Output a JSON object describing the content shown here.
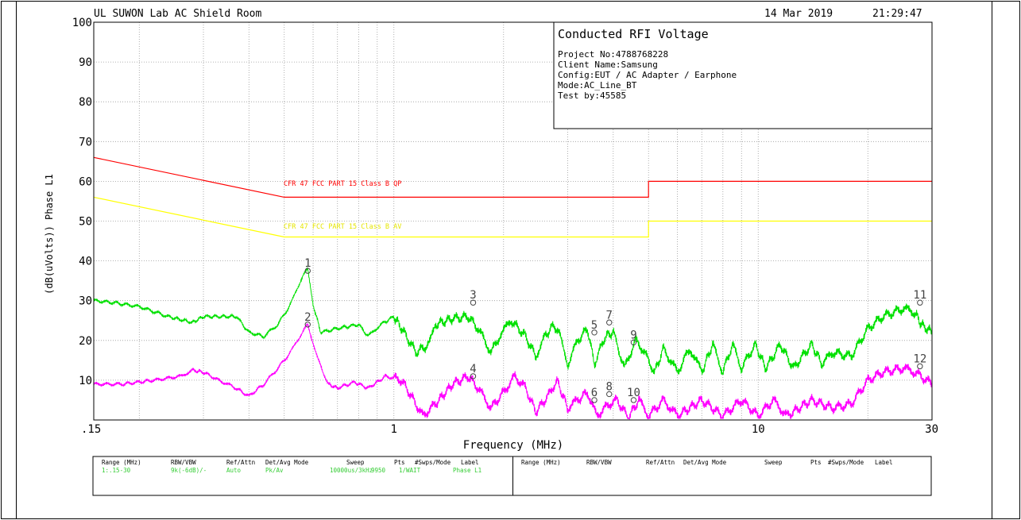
{
  "header": {
    "site": "UL SUWON Lab AC Shield Room",
    "date": "14 Mar 2019",
    "time": "21:29:47"
  },
  "info_box": {
    "title": "Conducted RFI Voltage",
    "lines": [
      "Project No:4788768228",
      "Client Name:Samsung",
      "Config:EUT / AC Adapter / Earphone",
      "Mode:AC_Line_BT",
      "Test by:45585"
    ]
  },
  "chart_data": {
    "type": "line",
    "ylabel": "(dB(uVolts)) Phase L1",
    "xlabel": "Frequency (MHz)",
    "x_scale": "log",
    "xlim": [
      0.15,
      30
    ],
    "ylim": [
      0,
      100
    ],
    "x_tick_labels": [
      ".15",
      "1",
      "10",
      "30"
    ],
    "y_tick_labels": [
      "100",
      "90",
      "80",
      "70",
      "60",
      "50",
      "40",
      "30",
      "20",
      "10"
    ],
    "grid": true,
    "colors": {
      "qp": "#ff0000",
      "av": "#ffff00",
      "peak": "#00e000",
      "average": "#ff00ff"
    },
    "limit_lines": [
      {
        "name": "CFR 47 FCC PART 15 Class B QP",
        "points": [
          [
            0.15,
            66
          ],
          [
            0.5,
            56
          ],
          [
            5,
            56
          ],
          [
            5,
            60
          ],
          [
            30,
            60
          ]
        ]
      },
      {
        "name": "CFR 47 FCC PART 15 Class B AV",
        "points": [
          [
            0.15,
            56
          ],
          [
            0.5,
            46
          ],
          [
            5,
            46
          ],
          [
            5,
            50
          ],
          [
            30,
            50
          ]
        ]
      }
    ],
    "series": [
      {
        "points": [
          [
            0.15,
            30
          ],
          [
            0.17,
            29.5
          ],
          [
            0.2,
            28.5
          ],
          [
            0.24,
            26
          ],
          [
            0.28,
            24.5
          ],
          [
            0.3,
            26
          ],
          [
            0.35,
            26
          ],
          [
            0.37,
            26
          ],
          [
            0.4,
            22
          ],
          [
            0.44,
            21
          ],
          [
            0.48,
            24
          ],
          [
            0.52,
            29
          ],
          [
            0.56,
            36
          ],
          [
            0.58,
            38
          ],
          [
            0.6,
            29
          ],
          [
            0.63,
            22
          ],
          [
            0.7,
            23
          ],
          [
            0.8,
            24
          ],
          [
            0.85,
            21
          ],
          [
            0.92,
            24
          ],
          [
            1.0,
            26
          ],
          [
            1.05,
            23
          ],
          [
            1.15,
            17
          ],
          [
            1.25,
            19
          ],
          [
            1.3,
            24
          ],
          [
            1.45,
            25.5
          ],
          [
            1.6,
            26
          ],
          [
            1.7,
            23
          ],
          [
            1.85,
            17
          ],
          [
            1.95,
            21
          ],
          [
            2.1,
            25
          ],
          [
            2.3,
            21
          ],
          [
            2.45,
            16
          ],
          [
            2.6,
            21
          ],
          [
            2.75,
            24
          ],
          [
            2.9,
            20
          ],
          [
            3.0,
            14
          ],
          [
            3.2,
            20
          ],
          [
            3.4,
            23
          ],
          [
            3.55,
            14
          ],
          [
            3.8,
            21
          ],
          [
            4.0,
            22
          ],
          [
            4.3,
            13
          ],
          [
            4.6,
            20
          ],
          [
            4.8,
            18
          ],
          [
            5.2,
            12
          ],
          [
            5.5,
            18
          ],
          [
            6,
            12
          ],
          [
            6.5,
            18
          ],
          [
            7,
            12
          ],
          [
            7.5,
            19
          ],
          [
            8,
            12
          ],
          [
            8.5,
            19
          ],
          [
            9,
            13
          ],
          [
            9.8,
            19
          ],
          [
            10.5,
            13
          ],
          [
            11.5,
            19
          ],
          [
            12.5,
            13
          ],
          [
            14,
            19
          ],
          [
            15,
            14
          ],
          [
            16,
            17
          ],
          [
            18,
            16
          ],
          [
            20,
            23
          ],
          [
            22,
            26
          ],
          [
            25,
            28
          ],
          [
            27,
            27
          ],
          [
            28,
            24
          ],
          [
            30,
            22
          ]
        ]
      },
      {
        "points": [
          [
            0.15,
            9
          ],
          [
            0.18,
            9
          ],
          [
            0.22,
            10
          ],
          [
            0.26,
            11
          ],
          [
            0.28,
            12.5
          ],
          [
            0.3,
            12
          ],
          [
            0.33,
            10
          ],
          [
            0.36,
            8.5
          ],
          [
            0.4,
            6
          ],
          [
            0.44,
            9
          ],
          [
            0.48,
            13
          ],
          [
            0.52,
            17
          ],
          [
            0.56,
            22
          ],
          [
            0.58,
            24
          ],
          [
            0.62,
            15
          ],
          [
            0.66,
            9
          ],
          [
            0.7,
            8
          ],
          [
            0.78,
            9.5
          ],
          [
            0.85,
            8
          ],
          [
            0.95,
            11
          ],
          [
            1.05,
            10
          ],
          [
            1.15,
            4
          ],
          [
            1.2,
            1
          ],
          [
            1.3,
            4
          ],
          [
            1.45,
            9
          ],
          [
            1.6,
            11
          ],
          [
            1.7,
            8
          ],
          [
            1.85,
            3
          ],
          [
            2.0,
            7
          ],
          [
            2.15,
            11
          ],
          [
            2.3,
            8
          ],
          [
            2.45,
            2
          ],
          [
            2.65,
            6
          ],
          [
            2.8,
            10
          ],
          [
            3.0,
            3
          ],
          [
            3.2,
            5
          ],
          [
            3.4,
            7
          ],
          [
            3.6,
            1
          ],
          [
            3.9,
            4
          ],
          [
            4.1,
            5
          ],
          [
            4.4,
            0.5
          ],
          [
            4.7,
            5
          ],
          [
            5,
            1
          ],
          [
            5.5,
            5
          ],
          [
            6,
            1
          ],
          [
            7,
            5
          ],
          [
            8,
            1
          ],
          [
            9,
            5
          ],
          [
            10,
            1
          ],
          [
            11,
            5
          ],
          [
            12,
            1
          ],
          [
            14,
            5
          ],
          [
            16,
            3
          ],
          [
            18,
            4
          ],
          [
            20,
            10
          ],
          [
            22,
            12
          ],
          [
            25,
            13
          ],
          [
            27,
            12
          ],
          [
            30,
            9
          ]
        ]
      }
    ],
    "markers": [
      {
        "label": "1",
        "x": 0.58,
        "y": 37.5
      },
      {
        "label": "2",
        "x": 0.58,
        "y": 24
      },
      {
        "label": "3",
        "x": 1.65,
        "y": 29.5
      },
      {
        "label": "4",
        "x": 1.65,
        "y": 11
      },
      {
        "label": "5",
        "x": 3.55,
        "y": 22
      },
      {
        "label": "6",
        "x": 3.55,
        "y": 5
      },
      {
        "label": "7",
        "x": 3.9,
        "y": 24.5
      },
      {
        "label": "8",
        "x": 3.9,
        "y": 6.5
      },
      {
        "label": "9",
        "x": 4.55,
        "y": 19.5
      },
      {
        "label": "10",
        "x": 4.55,
        "y": 5
      },
      {
        "label": "11",
        "x": 27.8,
        "y": 29.5
      },
      {
        "label": "12",
        "x": 27.8,
        "y": 13.5
      }
    ]
  },
  "settings_table": {
    "headers": [
      "Range (MHz)",
      "RBW/VBW",
      "Ref/Attn",
      "Det/Avg Mode",
      "Sweep",
      "Pts",
      "#Swps/Mode",
      "Label"
    ],
    "row": [
      "1:.15-30",
      "9k(-6dB)/-",
      "Auto",
      "Pk/Av",
      "10000us/3kHz",
      "9950",
      "1/WAIT",
      "Phase L1"
    ]
  }
}
